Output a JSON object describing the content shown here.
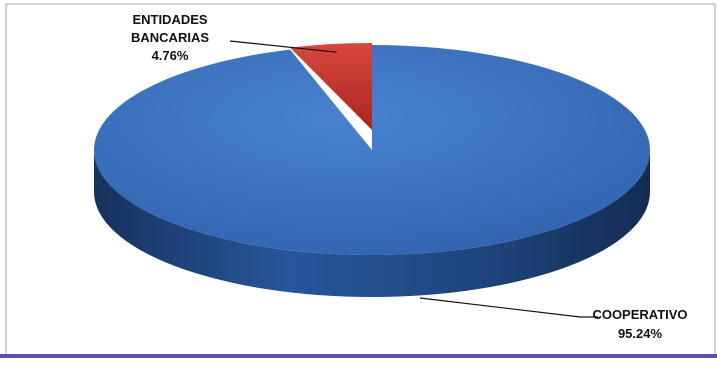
{
  "chart_data": {
    "type": "pie",
    "style": "3d",
    "start_angle_deg": 90,
    "slices": [
      {
        "name": "COOPERATIVO",
        "value": 95.24,
        "label": "95.24%",
        "color": "#3A6FBF"
      },
      {
        "name": "ENTIDADES BANCARIAS",
        "value": 4.76,
        "label": "4.76%",
        "color": "#C8342C"
      }
    ],
    "label_lines": [
      {
        "slice": 1,
        "lines": [
          "ENTIDADES",
          "BANCARIAS",
          "4.76%"
        ]
      },
      {
        "slice": 0,
        "lines": [
          "COOPERATIVO",
          "95.24%"
        ]
      }
    ],
    "legend": "none"
  },
  "colors": {
    "blue_top": "#3A6FBF",
    "blue_side": "#1F3F73",
    "red_top": "#C8342C",
    "bottom_bar": "#5A4FB4",
    "border": "#9AA0A6"
  }
}
